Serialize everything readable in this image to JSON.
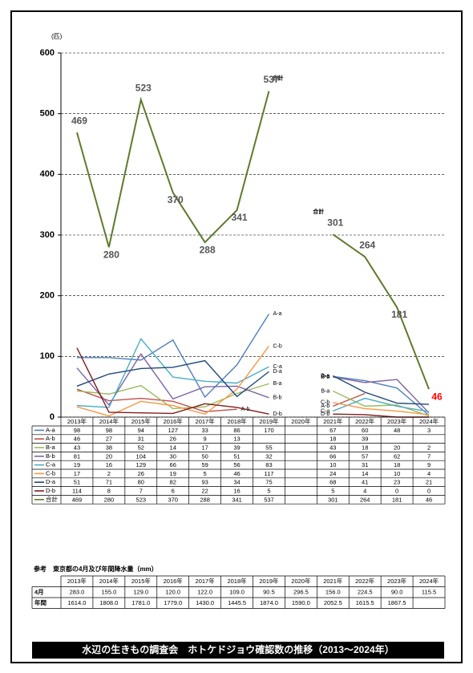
{
  "chart_data": {
    "type": "line",
    "y_unit": "(匹)",
    "categories": [
      "2013年",
      "2014年",
      "2015年",
      "2016年",
      "2017年",
      "2018年",
      "2019年",
      "2020年",
      "2021年",
      "2022年",
      "2023年",
      "2024年"
    ],
    "ylim": [
      0,
      600
    ],
    "yticks": [
      0,
      100,
      200,
      300,
      400,
      500,
      600
    ],
    "grid": true,
    "last_value_label_color": "#ff0000",
    "series": [
      {
        "name": "A-a",
        "color": "#4f81bd",
        "values": [
          98,
          98,
          94,
          127,
          33,
          86,
          170,
          null,
          67,
          60,
          48,
          3
        ]
      },
      {
        "name": "A-b",
        "color": "#c0504d",
        "values": [
          46,
          27,
          31,
          26,
          9,
          13,
          null,
          null,
          18,
          39,
          null,
          null
        ]
      },
      {
        "name": "B-a",
        "color": "#9bbb59",
        "values": [
          43,
          38,
          52,
          14,
          17,
          39,
          55,
          null,
          43,
          18,
          20,
          2
        ]
      },
      {
        "name": "B-b",
        "color": "#8064a2",
        "values": [
          81,
          20,
          104,
          30,
          50,
          51,
          32,
          null,
          66,
          57,
          62,
          7
        ]
      },
      {
        "name": "C-a",
        "color": "#4bacc6",
        "values": [
          19,
          16,
          129,
          66,
          59,
          56,
          83,
          null,
          10,
          31,
          18,
          9
        ]
      },
      {
        "name": "C-b",
        "color": "#f79646",
        "values": [
          17,
          2,
          26,
          19,
          5,
          46,
          117,
          null,
          24,
          14,
          10,
          4
        ]
      },
      {
        "name": "D-a",
        "color": "#1f497d",
        "values": [
          51,
          71,
          80,
          82,
          93,
          34,
          75,
          null,
          68,
          41,
          23,
          21
        ]
      },
      {
        "name": "D-b",
        "color": "#7f1f1f",
        "values": [
          114,
          8,
          7,
          6,
          22,
          16,
          5,
          null,
          5,
          4,
          0,
          0
        ]
      },
      {
        "name": "合計",
        "color": "#5f7a2c",
        "show_values": true,
        "values": [
          469,
          280,
          523,
          370,
          288,
          341,
          537,
          null,
          301,
          264,
          181,
          46
        ]
      }
    ]
  },
  "reference_table": {
    "title": "参考　東京都の4月及び年間降水量（mm）",
    "header": [
      "2013年",
      "2014年",
      "2015年",
      "2016年",
      "2017年",
      "2018年",
      "2019年",
      "2020年",
      "2021年",
      "2022年",
      "2023年",
      "2024年"
    ],
    "rows": [
      {
        "label": "4月",
        "values": [
          "283.0",
          "155.0",
          "129.0",
          "120.0",
          "122.0",
          "109.0",
          "90.5",
          "296.5",
          "156.0",
          "224.5",
          "90.0",
          "115.5"
        ]
      },
      {
        "label": "年間",
        "values": [
          "1614.0",
          "1808.0",
          "1781.0",
          "1779.0",
          "1430.0",
          "1445.5",
          "1874.0",
          "1590.0",
          "2052.5",
          "1615.5",
          "1867.5",
          null
        ]
      }
    ]
  },
  "footer": "水辺の生きもの調査会　ホトケドジョウ確認数の推移（2013～2024年）"
}
